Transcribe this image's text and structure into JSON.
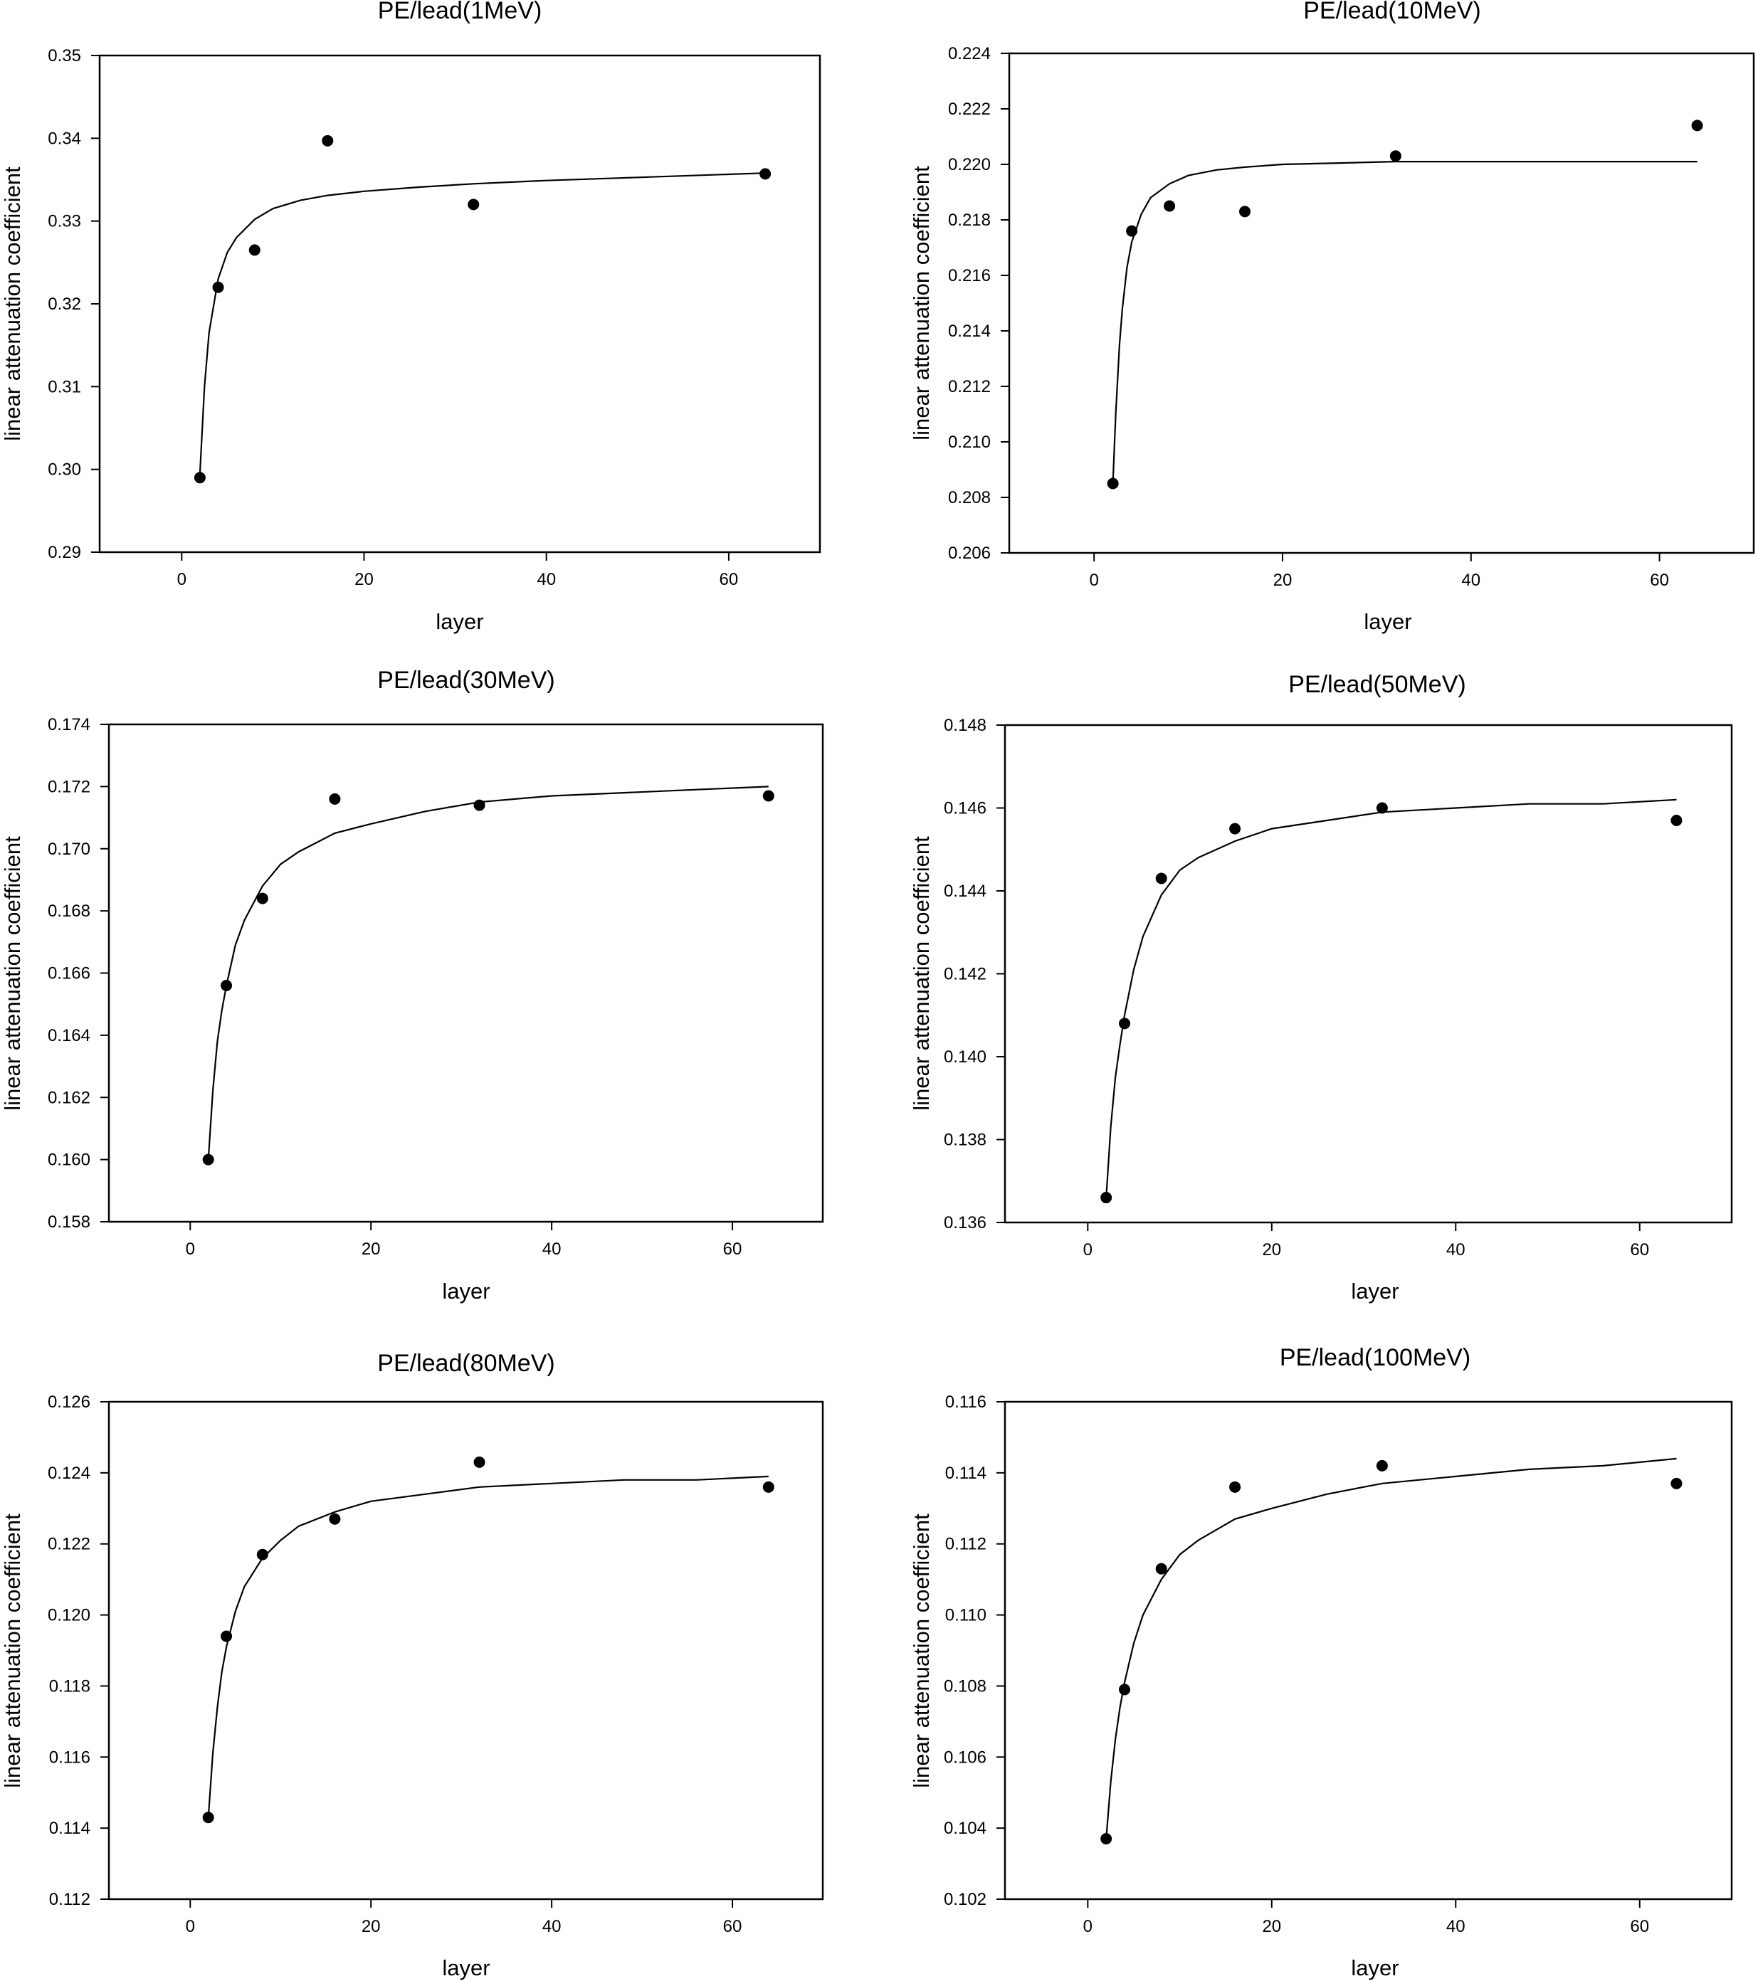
{
  "chart_data": [
    {
      "type": "scatter",
      "title": "PE/lead(1MeV)",
      "xlabel": "layer",
      "ylabel": "linear attenuation coefficient",
      "xlim": [
        -9,
        70
      ],
      "ylim": [
        0.29,
        0.35
      ],
      "xticks": [
        0,
        20,
        40,
        60
      ],
      "yticks": [
        0.29,
        0.3,
        0.31,
        0.32,
        0.33,
        0.34,
        0.35
      ],
      "ydecimals": 2,
      "grid": false,
      "legend": "none",
      "points": {
        "x": [
          2,
          4,
          8,
          16,
          32,
          64
        ],
        "y": [
          0.299,
          0.322,
          0.3265,
          0.3397,
          0.332,
          0.3357
        ]
      },
      "fit": {
        "x": [
          2,
          2.5,
          3,
          4,
          5,
          6,
          8,
          10,
          13,
          16,
          20,
          26,
          32,
          40,
          48,
          56,
          64
        ],
        "y": [
          0.2995,
          0.31,
          0.3165,
          0.323,
          0.3262,
          0.328,
          0.3302,
          0.3315,
          0.3325,
          0.3331,
          0.3336,
          0.3341,
          0.3345,
          0.3349,
          0.3352,
          0.3355,
          0.3358
        ]
      }
    },
    {
      "type": "scatter",
      "title": "PE/lead(10MeV)",
      "xlabel": "layer",
      "ylabel": "linear attenuation coefficient",
      "xlim": [
        -9,
        70
      ],
      "ylim": [
        0.206,
        0.224
      ],
      "xticks": [
        0,
        20,
        40,
        60
      ],
      "yticks": [
        0.206,
        0.208,
        0.21,
        0.212,
        0.214,
        0.216,
        0.218,
        0.22,
        0.222,
        0.224
      ],
      "ydecimals": 3,
      "grid": false,
      "legend": "none",
      "points": {
        "x": [
          2,
          4,
          8,
          16,
          32,
          64
        ],
        "y": [
          0.2085,
          0.2176,
          0.2185,
          0.2183,
          0.2203,
          0.2214
        ]
      },
      "fit": {
        "x": [
          2,
          2.3,
          2.7,
          3,
          3.5,
          4,
          5,
          6,
          8,
          10,
          13,
          16,
          20,
          26,
          32,
          40,
          48,
          56,
          64
        ],
        "y": [
          0.2085,
          0.211,
          0.2135,
          0.2148,
          0.2163,
          0.2172,
          0.2182,
          0.2188,
          0.2193,
          0.2196,
          0.2198,
          0.2199,
          0.22,
          0.22005,
          0.2201,
          0.2201,
          0.2201,
          0.2201,
          0.2201
        ]
      }
    },
    {
      "type": "scatter",
      "title": "PE/lead(30MeV)",
      "xlabel": "layer",
      "ylabel": "linear attenuation coefficient",
      "xlim": [
        -9,
        70
      ],
      "ylim": [
        0.158,
        0.174
      ],
      "xticks": [
        0,
        20,
        40,
        60
      ],
      "yticks": [
        0.158,
        0.16,
        0.162,
        0.164,
        0.166,
        0.168,
        0.17,
        0.172,
        0.174
      ],
      "ydecimals": 3,
      "grid": false,
      "legend": "none",
      "points": {
        "x": [
          2,
          4,
          8,
          16,
          32,
          64
        ],
        "y": [
          0.16,
          0.1656,
          0.1684,
          0.1716,
          0.1714,
          0.1717
        ]
      },
      "fit": {
        "x": [
          2,
          2.5,
          3,
          3.5,
          4,
          5,
          6,
          8,
          10,
          12,
          16,
          20,
          26,
          32,
          40,
          48,
          56,
          64
        ],
        "y": [
          0.16,
          0.1622,
          0.1638,
          0.1648,
          0.1656,
          0.1669,
          0.1677,
          0.1688,
          0.1695,
          0.1699,
          0.1705,
          0.1708,
          0.1712,
          0.1715,
          0.1717,
          0.1718,
          0.1719,
          0.172
        ]
      }
    },
    {
      "type": "scatter",
      "title": "PE/lead(50MeV)",
      "xlabel": "layer",
      "ylabel": "linear attenuation coefficient",
      "xlim": [
        -9,
        70
      ],
      "ylim": [
        0.136,
        0.148
      ],
      "xticks": [
        0,
        20,
        40,
        60
      ],
      "yticks": [
        0.136,
        0.138,
        0.14,
        0.142,
        0.144,
        0.146,
        0.148
      ],
      "ydecimals": 3,
      "grid": false,
      "legend": "none",
      "points": {
        "x": [
          2,
          4,
          8,
          16,
          32,
          64
        ],
        "y": [
          0.1366,
          0.1408,
          0.1443,
          0.1455,
          0.146,
          0.1457
        ]
      },
      "fit": {
        "x": [
          2,
          2.5,
          3,
          3.5,
          4,
          5,
          6,
          8,
          10,
          12,
          16,
          20,
          26,
          32,
          40,
          48,
          56,
          64
        ],
        "y": [
          0.1366,
          0.1383,
          0.1395,
          0.1403,
          0.141,
          0.1421,
          0.1429,
          0.1439,
          0.1445,
          0.1448,
          0.1452,
          0.1455,
          0.1457,
          0.1459,
          0.146,
          0.1461,
          0.1461,
          0.1462
        ]
      }
    },
    {
      "type": "scatter",
      "title": "PE/lead(80MeV)",
      "xlabel": "layer",
      "ylabel": "linear attenuation coefficient",
      "xlim": [
        -9,
        70
      ],
      "ylim": [
        0.112,
        0.126
      ],
      "xticks": [
        0,
        20,
        40,
        60
      ],
      "yticks": [
        0.112,
        0.114,
        0.116,
        0.118,
        0.12,
        0.122,
        0.124,
        0.126
      ],
      "ydecimals": 3,
      "grid": false,
      "legend": "none",
      "points": {
        "x": [
          2,
          4,
          8,
          16,
          32,
          64
        ],
        "y": [
          0.1143,
          0.1194,
          0.1217,
          0.1227,
          0.1243,
          0.1236
        ]
      },
      "fit": {
        "x": [
          2,
          2.5,
          3,
          3.5,
          4,
          5,
          6,
          8,
          10,
          12,
          16,
          20,
          26,
          32,
          40,
          48,
          56,
          64
        ],
        "y": [
          0.1143,
          0.1161,
          0.1174,
          0.1184,
          0.1191,
          0.1201,
          0.1208,
          0.1216,
          0.1221,
          0.1225,
          0.1229,
          0.1232,
          0.1234,
          0.1236,
          0.1237,
          0.1238,
          0.1238,
          0.1239
        ]
      }
    },
    {
      "type": "scatter",
      "title": "PE/lead(100MeV)",
      "xlabel": "layer",
      "ylabel": "linear attenuation coefficient",
      "xlim": [
        -9,
        70
      ],
      "ylim": [
        0.102,
        0.116
      ],
      "xticks": [
        0,
        20,
        40,
        60
      ],
      "yticks": [
        0.102,
        0.104,
        0.106,
        0.108,
        0.11,
        0.112,
        0.114,
        0.116
      ],
      "ydecimals": 3,
      "grid": false,
      "legend": "none",
      "points": {
        "x": [
          2,
          4,
          8,
          16,
          32,
          64
        ],
        "y": [
          0.1037,
          0.1079,
          0.1113,
          0.1136,
          0.1142,
          0.1137
        ]
      },
      "fit": {
        "x": [
          2,
          2.5,
          3,
          3.5,
          4,
          5,
          6,
          8,
          10,
          12,
          16,
          20,
          26,
          32,
          40,
          48,
          56,
          64
        ],
        "y": [
          0.1037,
          0.1053,
          0.1065,
          0.1074,
          0.1081,
          0.1092,
          0.11,
          0.111,
          0.1117,
          0.1121,
          0.1127,
          0.113,
          0.1134,
          0.1137,
          0.1139,
          0.1141,
          0.1142,
          0.1144
        ]
      }
    }
  ]
}
